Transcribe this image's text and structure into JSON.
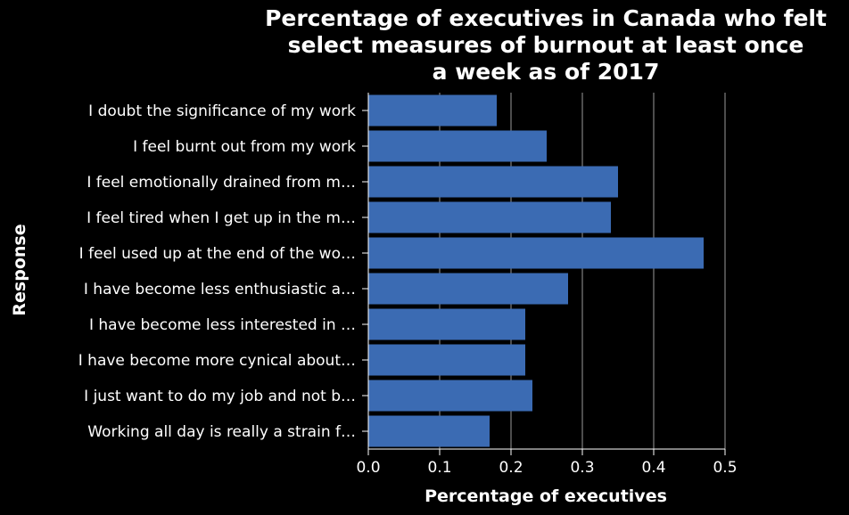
{
  "chart_data": {
    "type": "bar",
    "orientation": "horizontal",
    "title_lines": [
      "Percentage of executives in Canada who felt",
      "select measures of burnout at least once",
      "a week as of 2017"
    ],
    "xlabel": "Percentage of executives",
    "ylabel": "Response",
    "xlim": [
      0,
      0.5
    ],
    "x_ticks": [
      "0.0",
      "0.1",
      "0.2",
      "0.3",
      "0.4",
      "0.5"
    ],
    "grid": true,
    "categories": [
      "I doubt the significance of my work",
      "I feel burnt out from my work",
      "I feel emotionally drained from m…",
      "I feel tired when I get up in the m…",
      "I feel used up at the end of the wo…",
      "I have become less enthusiastic a…",
      "I have become less interested in …",
      "I have become more cynical about…",
      "I just want to do my job and not b…",
      "Working all day is really a strain f…"
    ],
    "values": [
      0.18,
      0.25,
      0.35,
      0.34,
      0.47,
      0.28,
      0.22,
      0.22,
      0.23,
      0.17
    ],
    "colors": {
      "background": "#000000",
      "bar": "#3b6bb3",
      "text": "#ffffff",
      "grid": "#9a9a9a",
      "axis": "#ffffff"
    }
  }
}
